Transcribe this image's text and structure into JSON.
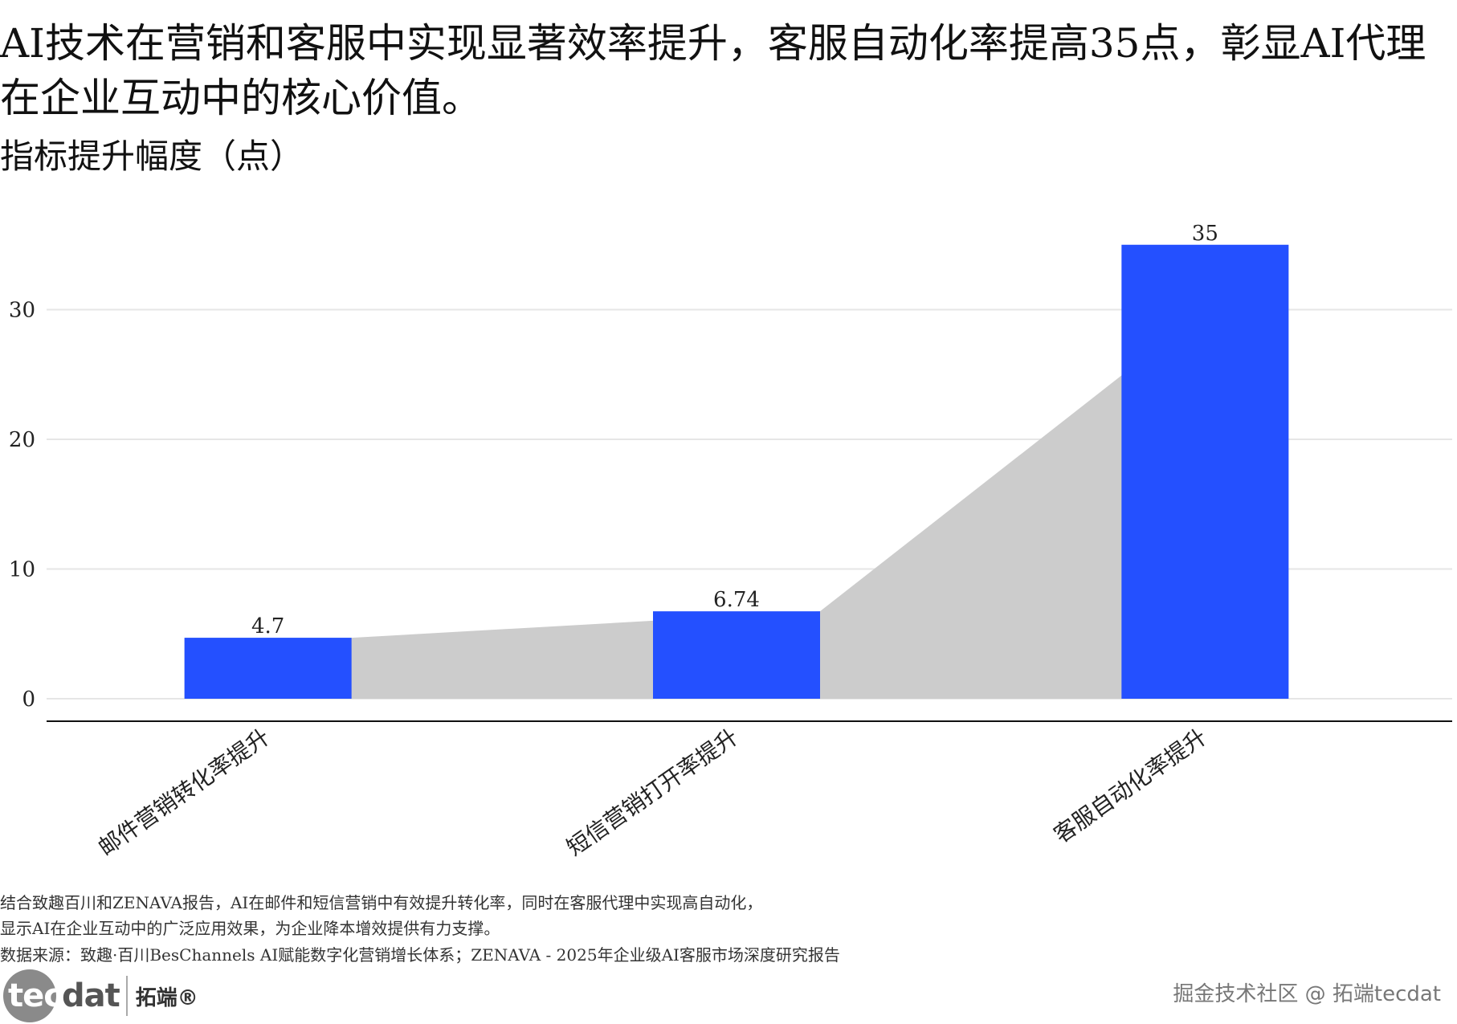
{
  "header": {
    "title": "AI技术在营销和客服中实现显著效率提升，客服自动化率提高35点，彰显AI代理在企业互动中的核心价值。",
    "subtitle": "指标提升幅度（点）"
  },
  "chart_data": {
    "type": "bar",
    "categories": [
      "邮件营销转化率提升",
      "短信营销打开率提升",
      "客服自动化率提升"
    ],
    "values": [
      4.7,
      6.74,
      35
    ],
    "value_labels": [
      "4.7",
      "6.74",
      "35"
    ],
    "title": "",
    "xlabel": "",
    "ylabel": "",
    "ylim": [
      0,
      38
    ],
    "yticks": [
      0,
      10,
      20,
      30
    ],
    "grid": true,
    "legend": "none",
    "bar_color": "#2450ff",
    "area_color": "#cccccc",
    "grid_color": "#e6e6e6"
  },
  "footer": {
    "caption_line1": "结合致趣百川和ZENAVA报告，AI在邮件和短信营销中有效提升转化率，同时在客服代理中实现高自动化，",
    "caption_line2": "显示AI在企业互动中的广泛应用效果，为企业降本增效提供有力支撑。",
    "source": "数据来源：致趣·百川BesChannels AI赋能数字化营销增长体系；ZENAVA - 2025年企业级AI客服市场深度研究报告",
    "logo_en_a": "tec",
    "logo_en_b": "dat",
    "logo_cn": "拓端®",
    "watermark": "掘金技术社区 @ 拓端tecdat"
  }
}
